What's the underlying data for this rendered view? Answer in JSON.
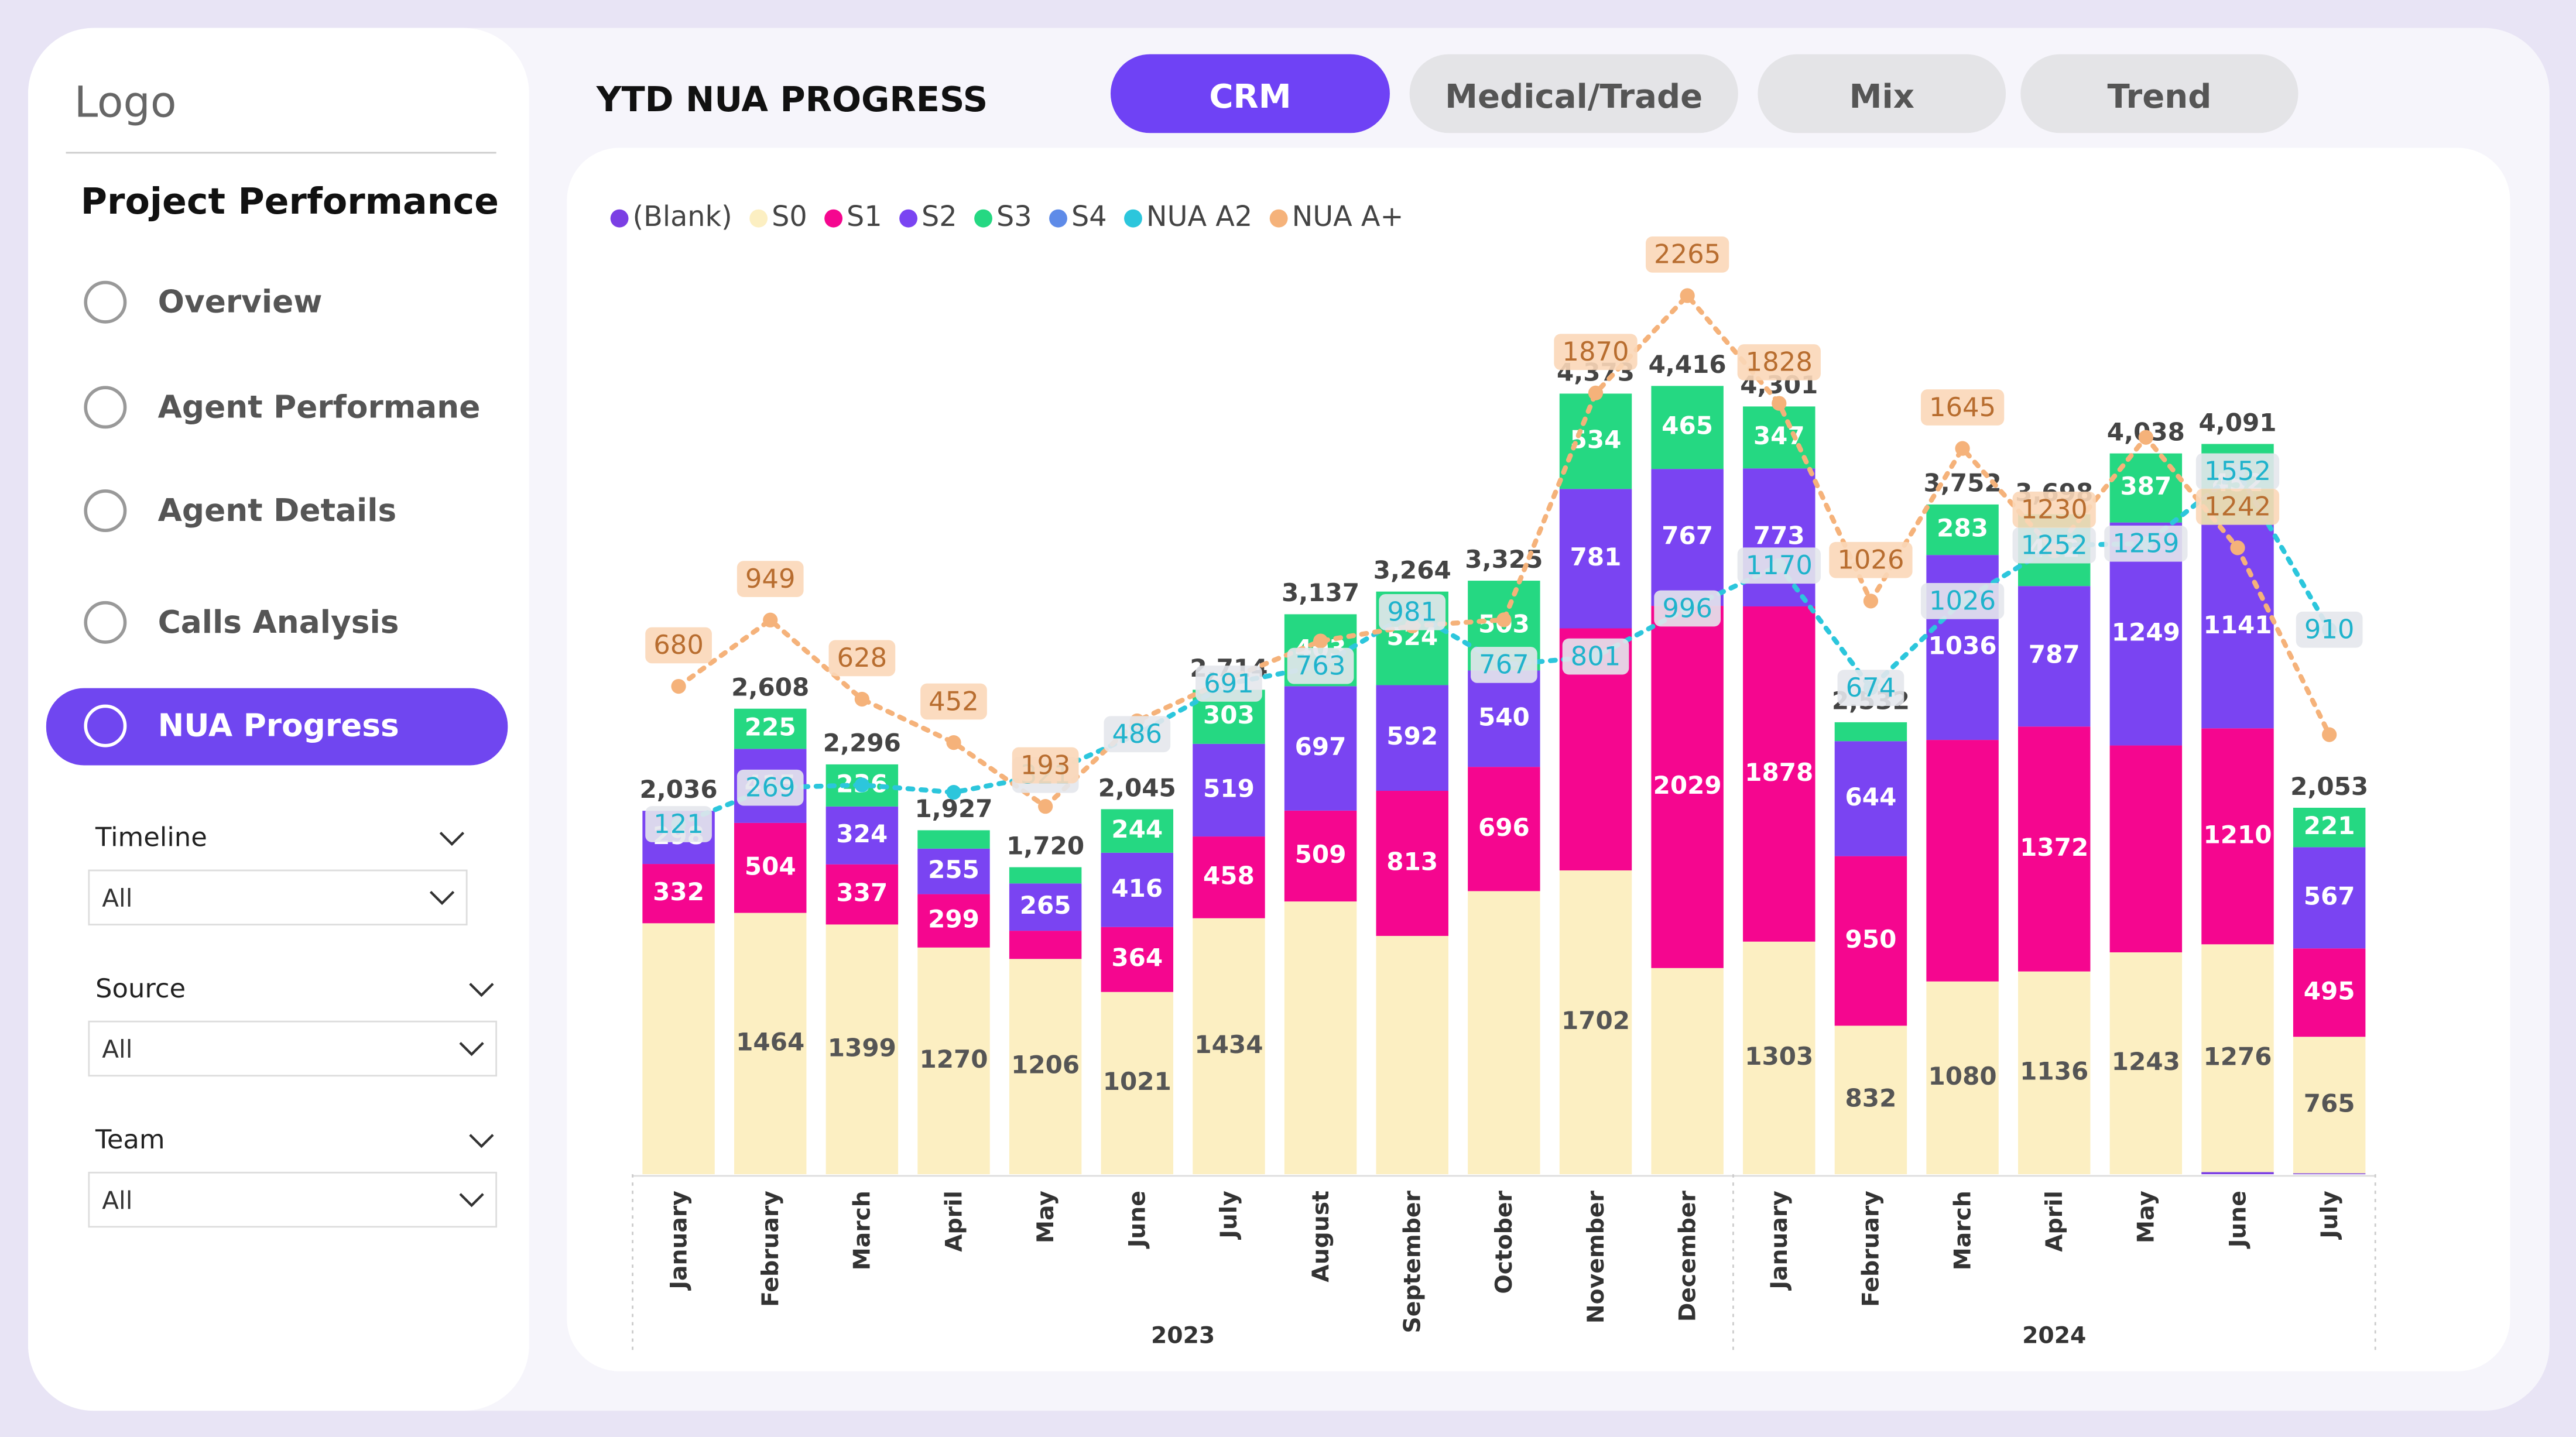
{
  "sidebar": {
    "logo": "Logo",
    "section_title": "Project Performance",
    "nav": [
      {
        "label": "Overview",
        "active": false
      },
      {
        "label": "Agent Performane",
        "active": false
      },
      {
        "label": "Agent Details",
        "active": false
      },
      {
        "label": "Calls Analysis",
        "active": false
      },
      {
        "label": "NUA Progress",
        "active": true
      }
    ],
    "filters": [
      {
        "label": "Timeline",
        "value": "All"
      },
      {
        "label": "Source",
        "value": "All"
      },
      {
        "label": "Team",
        "value": "All"
      }
    ]
  },
  "header": {
    "title": "YTD NUA PROGRESS",
    "tabs": [
      {
        "label": "CRM",
        "active": true
      },
      {
        "label": "Medical/Trade",
        "active": false
      },
      {
        "label": "Mix",
        "active": false
      },
      {
        "label": "Trend",
        "active": false
      }
    ]
  },
  "chart_data": {
    "type": "bar",
    "stacked": true,
    "categories": [
      "January",
      "February",
      "March",
      "April",
      "May",
      "June",
      "July",
      "August",
      "September",
      "October",
      "November",
      "December",
      "January",
      "February",
      "March",
      "April",
      "May",
      "June",
      "July"
    ],
    "year_groups": [
      {
        "label": "2023",
        "count": 12
      },
      {
        "label": "2024",
        "count": 7
      }
    ],
    "series": [
      {
        "name": "(Blank)",
        "color": "#7b3fe4",
        "type": "bar",
        "values": [
          null,
          null,
          null,
          null,
          null,
          null,
          null,
          null,
          null,
          null,
          null,
          null,
          null,
          null,
          null,
          null,
          null,
          12,
          5
        ],
        "value_labels": [
          null,
          null,
          null,
          null,
          null,
          null,
          null,
          null,
          null,
          null,
          null,
          null,
          null,
          null,
          null,
          null,
          null,
          null,
          null
        ]
      },
      {
        "name": "S0",
        "color": "#fcefc2",
        "type": "bar",
        "values": [
          1406,
          1464,
          1399,
          1270,
          1206,
          1021,
          1434,
          1528,
          1335,
          1586,
          1702,
          1155,
          1303,
          832,
          1080,
          1136,
          1243,
          1276,
          765
        ],
        "value_labels": [
          null,
          "1464",
          "1399",
          "1270",
          "1206",
          "1021",
          "1434",
          null,
          null,
          null,
          "1702",
          null,
          "1303",
          "832",
          "1080",
          "1136",
          "1243",
          "1276",
          "765"
        ]
      },
      {
        "name": "S1",
        "color": "#f5068f",
        "type": "bar",
        "values": [
          332,
          504,
          337,
          299,
          158,
          364,
          458,
          509,
          813,
          696,
          1356,
          2029,
          1878,
          950,
          1353,
          1372,
          1159,
          1210,
          495
        ],
        "value_labels": [
          "332",
          "504",
          "337",
          "299",
          null,
          "364",
          "458",
          "509",
          "813",
          "696",
          null,
          "2029",
          "1878",
          "950",
          null,
          "1372",
          null,
          "1210",
          "495"
        ]
      },
      {
        "name": "S2",
        "color": "#7a44f2",
        "type": "bar",
        "values": [
          298,
          415,
          324,
          255,
          265,
          416,
          519,
          697,
          592,
          540,
          781,
          767,
          773,
          644,
          1036,
          787,
          1249,
          1141,
          567
        ],
        "value_labels": [
          "298",
          "415",
          "324",
          "255",
          "265",
          "416",
          "519",
          "697",
          "592",
          "540",
          "781",
          "767",
          "773",
          "644",
          "1036",
          "787",
          "1249",
          "1141",
          "567"
        ]
      },
      {
        "name": "S3",
        "color": "#25d882",
        "type": "bar",
        "values": [
          null,
          225,
          236,
          103,
          91,
          244,
          303,
          403,
          524,
          503,
          534,
          465,
          347,
          106,
          283,
          402,
          387,
          452,
          221
        ],
        "value_labels": [
          null,
          "225",
          "236",
          null,
          null,
          "244",
          "303",
          "403",
          "524",
          "503",
          "534",
          "465",
          "347",
          null,
          "283",
          "402",
          "387",
          "452",
          "221"
        ]
      },
      {
        "name": "S4",
        "color": "#5e8be8",
        "type": "bar",
        "values": [
          null,
          null,
          null,
          null,
          null,
          null,
          null,
          null,
          null,
          null,
          null,
          null,
          null,
          null,
          null,
          null,
          null,
          null,
          null
        ],
        "value_labels": [
          null,
          null,
          null,
          null,
          null,
          null,
          null,
          null,
          null,
          null,
          null,
          null,
          null,
          null,
          null,
          null,
          null,
          null,
          null
        ]
      },
      {
        "name": "NUA A2",
        "color": "#2cc6dc",
        "type": "line",
        "values": [
          121,
          269,
          280,
          250,
          321,
          486,
          691,
          763,
          981,
          767,
          801,
          996,
          1170,
          674,
          1026,
          1252,
          1259,
          1552,
          910
        ],
        "value_labels": [
          "121",
          "269",
          null,
          null,
          "321",
          "486",
          "691",
          "763",
          "981",
          "767",
          "801",
          "996",
          "1170",
          "674",
          "1026",
          "1252",
          "1259",
          "1552",
          "910"
        ]
      },
      {
        "name": "NUA A+",
        "color": "#f5b27a",
        "type": "line",
        "values": [
          680,
          949,
          628,
          452,
          193,
          540,
          710,
          864,
          925,
          950,
          1870,
          2265,
          1828,
          1026,
          1645,
          1230,
          1690,
          1242,
          484
        ],
        "value_labels": [
          "680",
          "949",
          "628",
          "452",
          "193",
          null,
          null,
          null,
          null,
          null,
          "1870",
          "2265",
          "1828",
          "1026",
          "1645",
          "1230",
          null,
          "1242",
          null
        ]
      }
    ],
    "totals": {
      "values": [
        2036,
        2608,
        2296,
        1927,
        1720,
        2045,
        2714,
        3137,
        3264,
        3325,
        4373,
        4416,
        4301,
        2532,
        3752,
        3698,
        4038,
        4091,
        2053
      ],
      "value_labels": [
        "2,036",
        "2,608",
        "2,296",
        "1,927",
        "1,720",
        "2,045",
        "2,714",
        "3,137",
        "3,264",
        "3,325",
        "4,373",
        "4,416",
        "4,301",
        "2,532",
        "3,752",
        "3,698",
        "4,038",
        "4,091",
        "2,053"
      ]
    }
  }
}
